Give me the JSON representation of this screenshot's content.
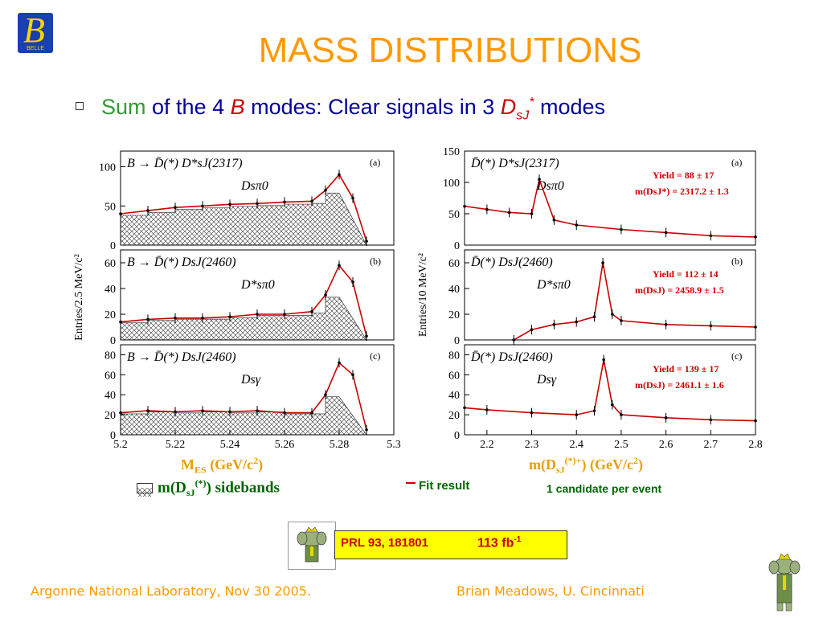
{
  "slide": {
    "title": "MASS DISTRIBUTIONS",
    "logo_text": "BELLE",
    "bullet": {
      "part1": "Sum",
      "part2": " of the 4 ",
      "part3": "B",
      "part4": " modes:  Clear signals in 3 ",
      "part5": "D",
      "part5_sub": "sJ",
      "part5_sup": "*",
      "part6": " modes"
    },
    "left_xlabel": {
      "main": "M",
      "sub": "ES",
      "rest": " (GeV/c",
      "sup": "2",
      "end": ")"
    },
    "right_xlabel": {
      "main": "m(D",
      "sub": "sJ",
      "sup": "(*)+",
      "rest": ") (GeV/c",
      "sup2": "2",
      "end": ")"
    },
    "sideband_legend": {
      "pre": "m(D",
      "sub": "sJ",
      "sup": "(*)",
      "post": ") sidebands"
    },
    "fit_legend": "Fit result",
    "candidate_note": "1 candidate per event",
    "reference": "PRL 93, 181801",
    "luminosity": "113 fb",
    "luminosity_sup": "-1",
    "footer_left": "Argonne National Laboratory, Nov 30 2005.",
    "footer_right": "Brian Meadows, U. Cincinnati",
    "colors": {
      "title": "#ff9900",
      "fit_curve": "#cc0000",
      "legend_green": "#006600",
      "ref_bg": "#ffff00"
    }
  },
  "chart_data": [
    {
      "type": "line",
      "panel": "left-a",
      "label": "(a)",
      "decay": "B → D̄(*) D*sJ(2317)",
      "daughters": "Dsπ0",
      "x": [
        5.2,
        5.21,
        5.22,
        5.23,
        5.24,
        5.25,
        5.26,
        5.27,
        5.275,
        5.28,
        5.285,
        5.29
      ],
      "series": [
        {
          "values": [
            40,
            44,
            48,
            50,
            52,
            53,
            55,
            56,
            70,
            90,
            60,
            5
          ]
        }
      ],
      "xlim": [
        5.2,
        5.3
      ],
      "ylim": [
        0,
        120
      ],
      "yticks": [
        0,
        50,
        100
      ]
    },
    {
      "type": "line",
      "panel": "left-b",
      "label": "(b)",
      "decay": "B → D̄(*) DsJ(2460)",
      "daughters": "D*sπ0",
      "x": [
        5.2,
        5.21,
        5.22,
        5.23,
        5.24,
        5.25,
        5.26,
        5.27,
        5.275,
        5.28,
        5.285,
        5.29
      ],
      "series": [
        {
          "values": [
            14,
            16,
            17,
            17,
            18,
            20,
            20,
            22,
            35,
            58,
            45,
            3
          ]
        }
      ],
      "xlim": [
        5.2,
        5.3
      ],
      "ylim": [
        0,
        70
      ],
      "yticks": [
        0,
        20,
        40,
        60
      ]
    },
    {
      "type": "line",
      "panel": "left-c",
      "label": "(c)",
      "decay": "B → D̄(*) DsJ(2460)",
      "daughters": "Dsγ",
      "x": [
        5.2,
        5.21,
        5.22,
        5.23,
        5.24,
        5.25,
        5.26,
        5.27,
        5.275,
        5.28,
        5.285,
        5.29
      ],
      "series": [
        {
          "values": [
            22,
            24,
            23,
            24,
            23,
            24,
            22,
            22,
            40,
            72,
            60,
            5
          ]
        }
      ],
      "xlim": [
        5.2,
        5.3
      ],
      "ylim": [
        0,
        90
      ],
      "xticks": [
        "5.2",
        "5.22",
        "5.24",
        "5.26",
        "5.28",
        "5.3"
      ],
      "yticks": [
        0,
        20,
        40,
        60,
        80
      ],
      "ylabel": "Entries/2.5 MeV/c²"
    },
    {
      "type": "line",
      "panel": "right-a",
      "label": "(a)",
      "decay": "D̄(*) D*sJ(2317)",
      "daughters": "Dsπ0",
      "yield_text": "Yield = 88 ± 17",
      "mass_text": "m(DsJ*) = 2317.2 ± 1.3",
      "x": [
        2.15,
        2.2,
        2.25,
        2.3,
        2.317,
        2.35,
        2.4,
        2.5,
        2.6,
        2.7,
        2.8
      ],
      "series": [
        {
          "values": [
            62,
            57,
            52,
            50,
            105,
            40,
            32,
            25,
            20,
            15,
            13
          ]
        }
      ],
      "xlim": [
        2.15,
        2.8
      ],
      "ylim": [
        0,
        150
      ],
      "yticks": [
        0,
        50,
        100,
        150
      ]
    },
    {
      "type": "line",
      "panel": "right-b",
      "label": "(b)",
      "decay": "D̄(*) DsJ(2460)",
      "daughters": "D*sπ0",
      "yield_text": "Yield = 112 ± 14",
      "mass_text": "m(DsJ) = 2458.9 ± 1.5",
      "x": [
        2.26,
        2.3,
        2.35,
        2.4,
        2.44,
        2.459,
        2.48,
        2.5,
        2.6,
        2.7,
        2.8
      ],
      "series": [
        {
          "values": [
            0,
            8,
            12,
            14,
            18,
            60,
            20,
            15,
            12,
            11,
            10
          ]
        }
      ],
      "xlim": [
        2.15,
        2.8
      ],
      "ylim": [
        0,
        70
      ],
      "yticks": [
        0,
        20,
        40,
        60
      ],
      "ylabel": "Entries/10 MeV/c²"
    },
    {
      "type": "line",
      "panel": "right-c",
      "label": "(c)",
      "decay": "D̄(*) DsJ(2460)",
      "daughters": "Dsγ",
      "yield_text": "Yield = 139 ± 17",
      "mass_text": "m(DsJ) = 2461.1 ± 1.6",
      "x": [
        2.15,
        2.2,
        2.3,
        2.4,
        2.44,
        2.461,
        2.48,
        2.5,
        2.6,
        2.7,
        2.8
      ],
      "series": [
        {
          "values": [
            27,
            25,
            22,
            20,
            24,
            75,
            30,
            20,
            17,
            15,
            14
          ]
        }
      ],
      "xlim": [
        2.15,
        2.8
      ],
      "ylim": [
        0,
        90
      ],
      "xticks": [
        "2.2",
        "2.3",
        "2.4",
        "2.5",
        "2.6",
        "2.7",
        "2.8"
      ],
      "yticks": [
        0,
        20,
        40,
        60,
        80
      ]
    }
  ]
}
